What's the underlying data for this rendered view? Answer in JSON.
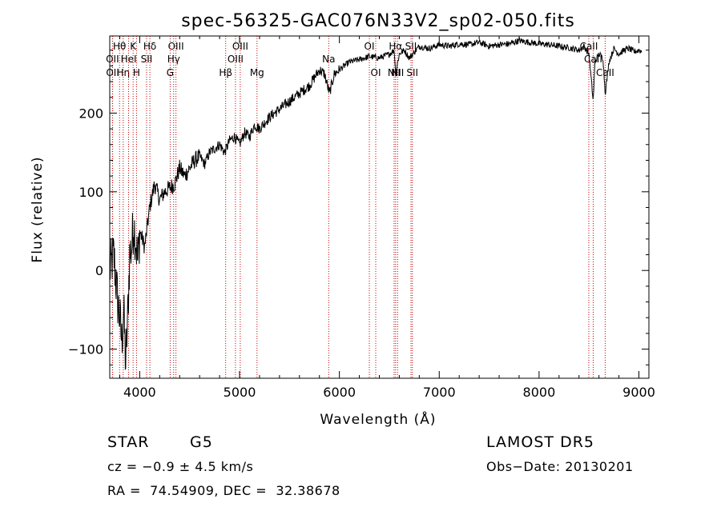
{
  "chart_data": {
    "type": "line",
    "title": "spec-56325-GAC076N33V2_sp02-050.fits",
    "xlabel": "Wavelength (Å)",
    "ylabel": "Flux (relative)",
    "xlim": [
      3700,
      9100
    ],
    "ylim": [
      -137,
      298
    ],
    "x_ticks": [
      4000,
      5000,
      6000,
      7000,
      8000,
      9000
    ],
    "y_ticks": [
      -100,
      0,
      100,
      200
    ],
    "grid": false,
    "series": [
      {
        "x": [
          3700,
          3740,
          3780,
          3800,
          3820,
          3840,
          3860,
          3880,
          3900,
          3920,
          3940,
          3960,
          3980,
          4000,
          4050,
          4100,
          4150,
          4200,
          4250,
          4300,
          4350,
          4400,
          4450,
          4500,
          4550,
          4600,
          4650,
          4700,
          4750,
          4800,
          4850,
          4900,
          4950,
          5000,
          5050,
          5100,
          5150,
          5200,
          5300,
          5400,
          5500,
          5600,
          5700,
          5750,
          5800,
          5850,
          5900,
          5950,
          6000,
          6100,
          6200,
          6300,
          6400,
          6500,
          6550,
          6563,
          6600,
          6650,
          6700,
          6800,
          6900,
          7000,
          7100,
          7200,
          7300,
          7400,
          7500,
          7600,
          7700,
          7800,
          7900,
          8000,
          8100,
          8200,
          8300,
          8400,
          8450,
          8500,
          8542,
          8560,
          8600,
          8640,
          8662,
          8700,
          8750,
          8800,
          8850,
          8900,
          8950,
          9000,
          9030
        ],
        "y": [
          0,
          20,
          -40,
          -60,
          -90,
          -50,
          -120,
          -60,
          20,
          30,
          60,
          40,
          10,
          50,
          30,
          80,
          110,
          90,
          100,
          105,
          110,
          130,
          120,
          130,
          140,
          145,
          135,
          150,
          155,
          160,
          150,
          165,
          170,
          160,
          175,
          170,
          185,
          180,
          195,
          205,
          215,
          225,
          235,
          245,
          255,
          250,
          225,
          250,
          255,
          265,
          268,
          272,
          270,
          275,
          280,
          250,
          275,
          280,
          270,
          285,
          282,
          287,
          285,
          288,
          287,
          290,
          285,
          287,
          288,
          292,
          290,
          288,
          287,
          285,
          283,
          280,
          285,
          275,
          215,
          265,
          275,
          270,
          225,
          265,
          282,
          275,
          280,
          282,
          278,
          280,
          278
        ]
      }
    ],
    "lines": [
      {
        "label": "Hθ",
        "x": 3798,
        "row": 1
      },
      {
        "label": "OII",
        "x": 3727,
        "row": 2
      },
      {
        "label": "OII",
        "x": 3729,
        "row": 3
      },
      {
        "label": "Hη",
        "x": 3835,
        "row": 3
      },
      {
        "label": "K",
        "x": 3934,
        "row": 1
      },
      {
        "label": "HeI",
        "x": 3889,
        "row": 2
      },
      {
        "label": "H",
        "x": 3968,
        "row": 3
      },
      {
        "label": "SII",
        "x": 4069,
        "row": 2
      },
      {
        "label": "Hδ",
        "x": 4102,
        "row": 1
      },
      {
        "label": "OIII",
        "x": 4363,
        "row": 1
      },
      {
        "label": "Hγ",
        "x": 4340,
        "row": 2
      },
      {
        "label": "G",
        "x": 4305,
        "row": 3
      },
      {
        "label": "Hβ",
        "x": 4861,
        "row": 3
      },
      {
        "label": "OIII",
        "x": 4959,
        "row": 2
      },
      {
        "label": "OIII",
        "x": 5007,
        "row": 1
      },
      {
        "label": "Mg",
        "x": 5175,
        "row": 3
      },
      {
        "label": "Na",
        "x": 5893,
        "row": 2
      },
      {
        "label": "OI",
        "x": 6300,
        "row": 1
      },
      {
        "label": "OI",
        "x": 6364,
        "row": 3
      },
      {
        "label": "NII",
        "x": 6548,
        "row": 3
      },
      {
        "label": "Hα",
        "x": 6563,
        "row": 1
      },
      {
        "label": "NII",
        "x": 6583,
        "row": 3
      },
      {
        "label": "SII",
        "x": 6717,
        "row": 1
      },
      {
        "label": "SII",
        "x": 6731,
        "row": 3
      },
      {
        "label": "CaII",
        "x": 8498,
        "row": 1
      },
      {
        "label": "CaII",
        "x": 8542,
        "row": 2
      },
      {
        "label": "CaII",
        "x": 8662,
        "row": 3
      }
    ]
  },
  "info": {
    "class": "STAR",
    "subclass": "G5",
    "survey": "LAMOST DR5",
    "cz": "cz = −0.9 ± 4.5 km/s",
    "obs_date": "Obs−Date: 20130201",
    "radec": "RA =  74.54909, DEC =  32.38678"
  }
}
